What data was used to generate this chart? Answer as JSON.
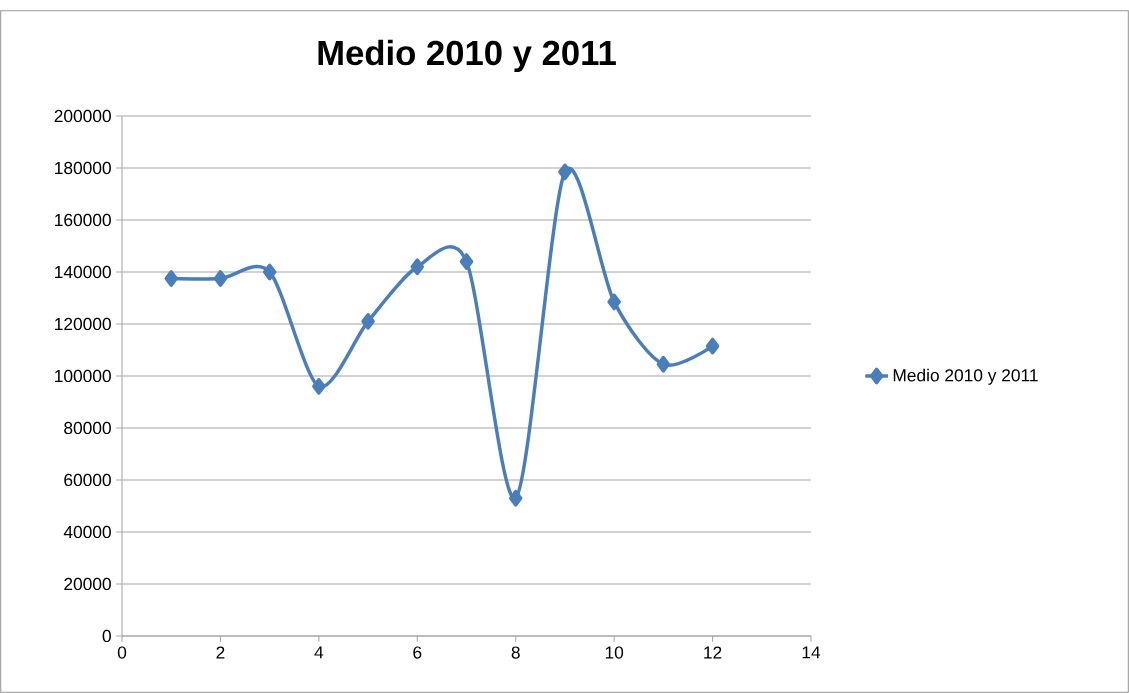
{
  "chart_data": {
    "type": "line",
    "title": "Medio 2010 y 2011",
    "x": [
      1,
      2,
      3,
      4,
      5,
      6,
      7,
      8,
      9,
      10,
      11,
      12
    ],
    "series": [
      {
        "name": "Medio 2010 y 2011",
        "color": "#4a7ebb",
        "values": [
          137500,
          137500,
          140000,
          96000,
          121000,
          142000,
          144000,
          53000,
          178500,
          128500,
          104500,
          111500
        ]
      }
    ],
    "xlim": [
      0,
      14
    ],
    "ylim": [
      0,
      200000
    ],
    "xticks": [
      0,
      2,
      4,
      6,
      8,
      10,
      12,
      14
    ],
    "yticks": [
      0,
      20000,
      40000,
      60000,
      80000,
      100000,
      120000,
      140000,
      160000,
      180000,
      200000
    ],
    "grid": "y",
    "legend": "right",
    "marker": "diamond"
  }
}
